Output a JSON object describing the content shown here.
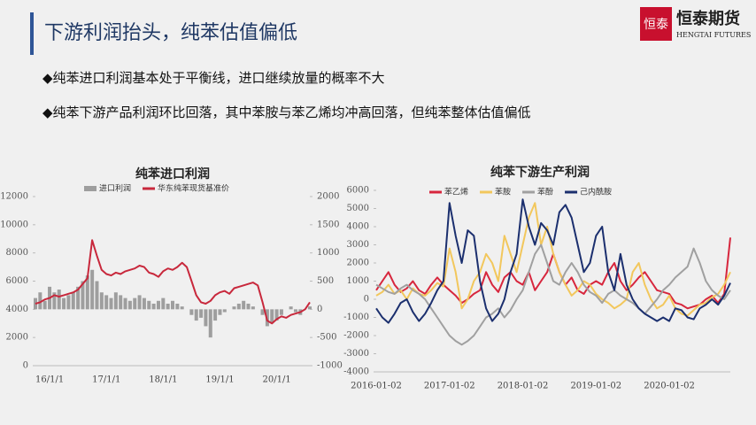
{
  "header": {
    "title": "下游利润抬头，纯苯估值偏低",
    "logo_mark": "恒泰",
    "logo_name": "恒泰期货",
    "logo_en": "HENGTAI FUTURES"
  },
  "bullets": [
    "◆纯苯进口利润基本处于平衡线，进口继续放量的概率不大",
    "◆纯苯下游产品利润环比回落，其中苯胺与苯乙烯均冲高回落，但纯苯整体估值偏低"
  ],
  "chart_data": [
    {
      "type": "combo",
      "title": "纯苯进口利润",
      "categories": [
        "16/1/1",
        null,
        null,
        null,
        null,
        null,
        null,
        null,
        null,
        null,
        null,
        null,
        "17/1/1",
        null,
        null,
        null,
        null,
        null,
        null,
        null,
        null,
        null,
        null,
        null,
        "18/1/1",
        null,
        null,
        null,
        null,
        null,
        null,
        null,
        null,
        null,
        null,
        null,
        "19/1/1",
        null,
        null,
        null,
        null,
        null,
        null,
        null,
        null,
        null,
        null,
        null,
        "20/1/1",
        null,
        null,
        null,
        null,
        null,
        null,
        null,
        null,
        null,
        null
      ],
      "series": [
        {
          "name": "进口利润",
          "kind": "bar",
          "axis": "y2",
          "color": "#9e9e9e",
          "values": [
            200,
            300,
            150,
            400,
            300,
            350,
            200,
            250,
            300,
            400,
            500,
            600,
            700,
            500,
            300,
            250,
            200,
            300,
            250,
            200,
            150,
            200,
            250,
            200,
            150,
            100,
            150,
            200,
            100,
            150,
            100,
            50,
            0,
            -100,
            -200,
            -150,
            -300,
            -500,
            -200,
            -100,
            -50,
            0,
            50,
            100,
            150,
            100,
            50,
            0,
            -100,
            -300,
            -250,
            -200,
            -100,
            0,
            50,
            -50,
            -100,
            0,
            50
          ]
        },
        {
          "name": "华东纯苯现货基准价",
          "kind": "line",
          "color": "#c8283c",
          "values": [
            4400,
            4500,
            4700,
            4800,
            5000,
            4900,
            5000,
            5100,
            5200,
            5400,
            5800,
            6200,
            8900,
            7800,
            6800,
            6500,
            6400,
            6600,
            6500,
            6700,
            6800,
            6900,
            7100,
            7000,
            6600,
            6500,
            6300,
            6700,
            6900,
            6800,
            7000,
            7300,
            7000,
            6000,
            5000,
            4500,
            4400,
            4600,
            5000,
            5200,
            5300,
            5100,
            5500,
            5600,
            5700,
            5800,
            5900,
            5700,
            4500,
            3200,
            3000,
            3300,
            3500,
            3400,
            3600,
            3700,
            3800,
            4000,
            4500
          ]
        }
      ],
      "ylim": [
        0,
        12000
      ],
      "yticks": [
        0,
        2000,
        4000,
        6000,
        8000,
        10000,
        12000
      ],
      "y2lim": [
        -1000,
        2000
      ],
      "y2ticks": [
        -1000,
        -500,
        0,
        500,
        1000,
        1500,
        2000
      ]
    },
    {
      "type": "line",
      "title": "纯苯下游生产利润",
      "categories": [
        "2016-01-02",
        null,
        null,
        null,
        null,
        null,
        null,
        null,
        null,
        null,
        null,
        null,
        "2017-01-02",
        null,
        null,
        null,
        null,
        null,
        null,
        null,
        null,
        null,
        null,
        null,
        "2018-01-02",
        null,
        null,
        null,
        null,
        null,
        null,
        null,
        null,
        null,
        null,
        null,
        "2019-01-02",
        null,
        null,
        null,
        null,
        null,
        null,
        null,
        null,
        null,
        null,
        null,
        "2020-01-02",
        null,
        null,
        null,
        null,
        null,
        null,
        null,
        null,
        null,
        null
      ],
      "series": [
        {
          "name": "苯乙烯",
          "color": "#d7263d",
          "values": [
            500,
            1000,
            1500,
            800,
            400,
            600,
            1000,
            500,
            300,
            800,
            1200,
            800,
            500,
            200,
            -200,
            0,
            300,
            500,
            1500,
            800,
            400,
            1200,
            1500,
            1000,
            800,
            1500,
            500,
            1000,
            1500,
            2500,
            1500,
            800,
            1200,
            500,
            300,
            800,
            1000,
            800,
            1500,
            2000,
            1000,
            500,
            800,
            1200,
            1500,
            1000,
            500,
            400,
            300,
            -200,
            -300,
            -500,
            -400,
            -300,
            0,
            200,
            -200,
            300,
            3400
          ]
        },
        {
          "name": "苯胺",
          "color": "#f2c75c",
          "values": [
            200,
            400,
            800,
            300,
            500,
            0,
            600,
            300,
            200,
            500,
            900,
            700,
            2800,
            1500,
            -500,
            0,
            1000,
            1500,
            2500,
            2000,
            1000,
            3500,
            2500,
            1500,
            3000,
            4500,
            5300,
            3000,
            4000,
            2500,
            1500,
            800,
            200,
            500,
            1000,
            800,
            300,
            0,
            -200,
            -500,
            -300,
            0,
            1500,
            2000,
            800,
            0,
            -500,
            -300,
            200,
            -500,
            -800,
            -900,
            -600,
            -300,
            -200,
            100,
            300,
            800,
            1500
          ]
        },
        {
          "name": "苯酚",
          "color": "#a0a0a0",
          "values": [
            800,
            600,
            400,
            300,
            600,
            800,
            500,
            300,
            0,
            -500,
            -1000,
            -1500,
            -2000,
            -2300,
            -2500,
            -2300,
            -2000,
            -1500,
            -1000,
            -800,
            -500,
            -1000,
            -600,
            0,
            500,
            1500,
            2500,
            3000,
            2000,
            1000,
            800,
            1500,
            2000,
            1500,
            800,
            400,
            200,
            -200,
            300,
            500,
            200,
            0,
            -200,
            -500,
            -800,
            -400,
            0,
            500,
            800,
            1200,
            1500,
            1800,
            2800,
            2000,
            1000,
            500,
            200,
            0,
            500
          ]
        },
        {
          "name": "己内酰胺",
          "color": "#1b2f6e",
          "values": [
            -500,
            -1000,
            -1300,
            -800,
            -200,
            0,
            -700,
            -1200,
            -800,
            -200,
            500,
            1000,
            5300,
            3500,
            2000,
            3800,
            3500,
            1000,
            -500,
            -1200,
            -800,
            0,
            1500,
            2500,
            5500,
            4000,
            3000,
            4200,
            3800,
            3000,
            4800,
            5200,
            4500,
            3000,
            1500,
            2000,
            3500,
            4000,
            1500,
            500,
            2500,
            800,
            0,
            -500,
            -800,
            -1000,
            -1200,
            -1000,
            -1200,
            -500,
            -600,
            -1000,
            -1100,
            -500,
            -300,
            0,
            -300,
            200,
            900
          ]
        }
      ],
      "ylim": [
        -4000,
        6000
      ],
      "yticks": [
        -4000,
        -3000,
        -2000,
        -1000,
        0,
        1000,
        2000,
        3000,
        4000,
        5000,
        6000
      ]
    }
  ]
}
